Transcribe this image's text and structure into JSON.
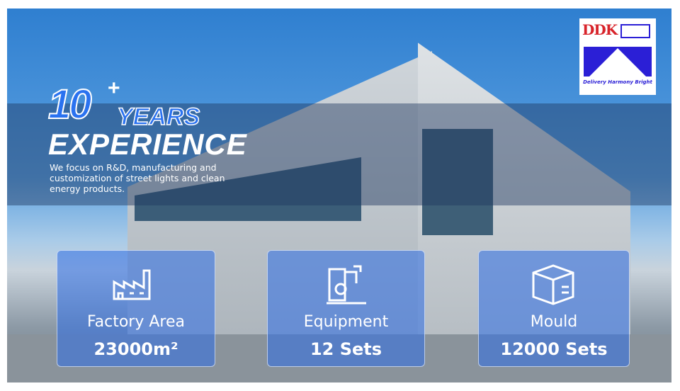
{
  "logo": {
    "brand": "DDK",
    "tagline": "Delivery Harmony Bright"
  },
  "hero": {
    "number": "10",
    "plus": "+",
    "years": "YEARS",
    "experience": "EXPERIENCE",
    "description": "We focus on R&D, manufacturing and customization of street lights and clean energy products."
  },
  "stats": [
    {
      "icon": "factory-icon",
      "label": "Factory Area",
      "value": "23000m²"
    },
    {
      "icon": "machine-icon",
      "label": "Equipment",
      "value": "12 Sets"
    },
    {
      "icon": "box-icon",
      "label": "Mould",
      "value": "12000 Sets"
    }
  ],
  "colors": {
    "accent": "#2a72f0",
    "card": "#2d6ee6",
    "logo_blue": "#2b1fd6",
    "logo_red": "#d8232a"
  }
}
